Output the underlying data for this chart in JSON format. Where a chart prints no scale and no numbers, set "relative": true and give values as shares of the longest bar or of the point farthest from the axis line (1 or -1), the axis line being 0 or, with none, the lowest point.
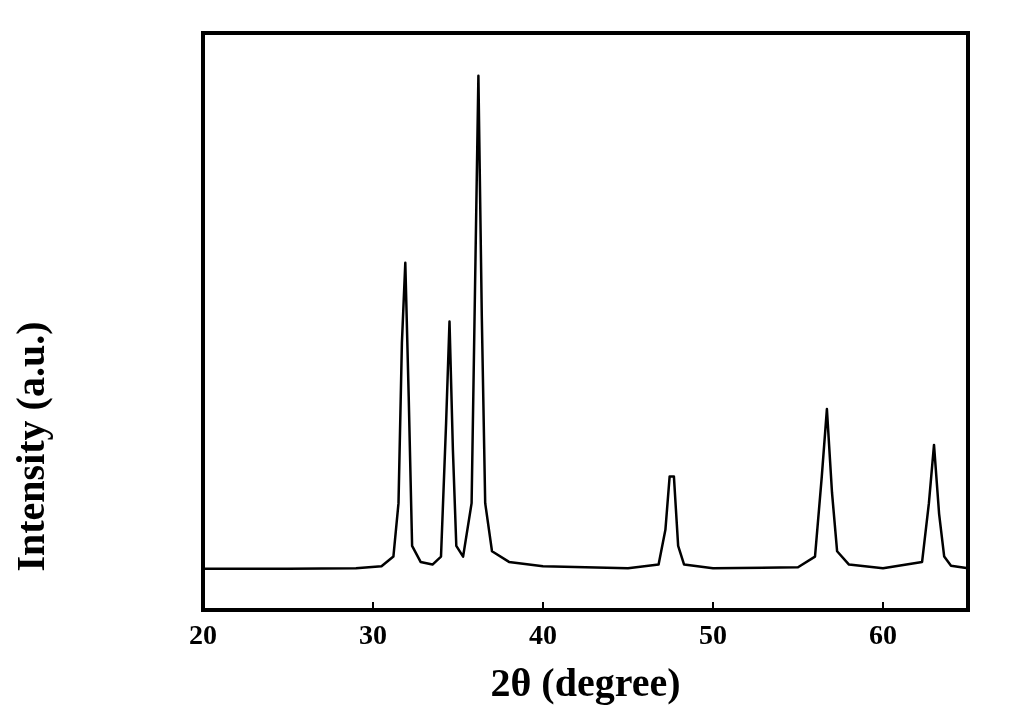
{
  "chart_data": {
    "type": "line",
    "xlabel": "2θ (degree)",
    "ylabel": "Intensity (a.u.)",
    "relative": true,
    "xlim": [
      20,
      65
    ],
    "xticks": [
      20,
      30,
      40,
      50,
      60
    ],
    "marker": "none",
    "line_style": "solid",
    "grid": false,
    "series": [
      {
        "color": "#000000",
        "x": [
          20,
          25,
          29,
          30.5,
          31.2,
          31.5,
          31.7,
          31.9,
          32.1,
          32.3,
          32.8,
          33.5,
          34.0,
          34.3,
          34.5,
          34.7,
          34.9,
          35.3,
          35.8,
          36.0,
          36.2,
          36.4,
          36.6,
          37,
          38,
          40,
          45,
          46.8,
          47.2,
          47.45,
          47.7,
          47.95,
          48.3,
          50,
          55,
          56,
          56.4,
          56.7,
          57,
          57.3,
          58,
          60,
          62.3,
          62.7,
          63.0,
          63.3,
          63.6,
          64,
          65
        ],
        "values": [
          0.077,
          0.077,
          0.078,
          0.082,
          0.1,
          0.2,
          0.5,
          0.65,
          0.4,
          0.12,
          0.09,
          0.085,
          0.1,
          0.35,
          0.54,
          0.3,
          0.12,
          0.1,
          0.2,
          0.6,
          1,
          0.55,
          0.2,
          0.11,
          0.09,
          0.082,
          0.078,
          0.085,
          0.15,
          0.25,
          0.25,
          0.12,
          0.085,
          0.078,
          0.08,
          0.1,
          0.25,
          0.376,
          0.22,
          0.11,
          0.085,
          0.078,
          0.09,
          0.2,
          0.309,
          0.18,
          0.1,
          0.083,
          0.078
        ]
      }
    ]
  }
}
